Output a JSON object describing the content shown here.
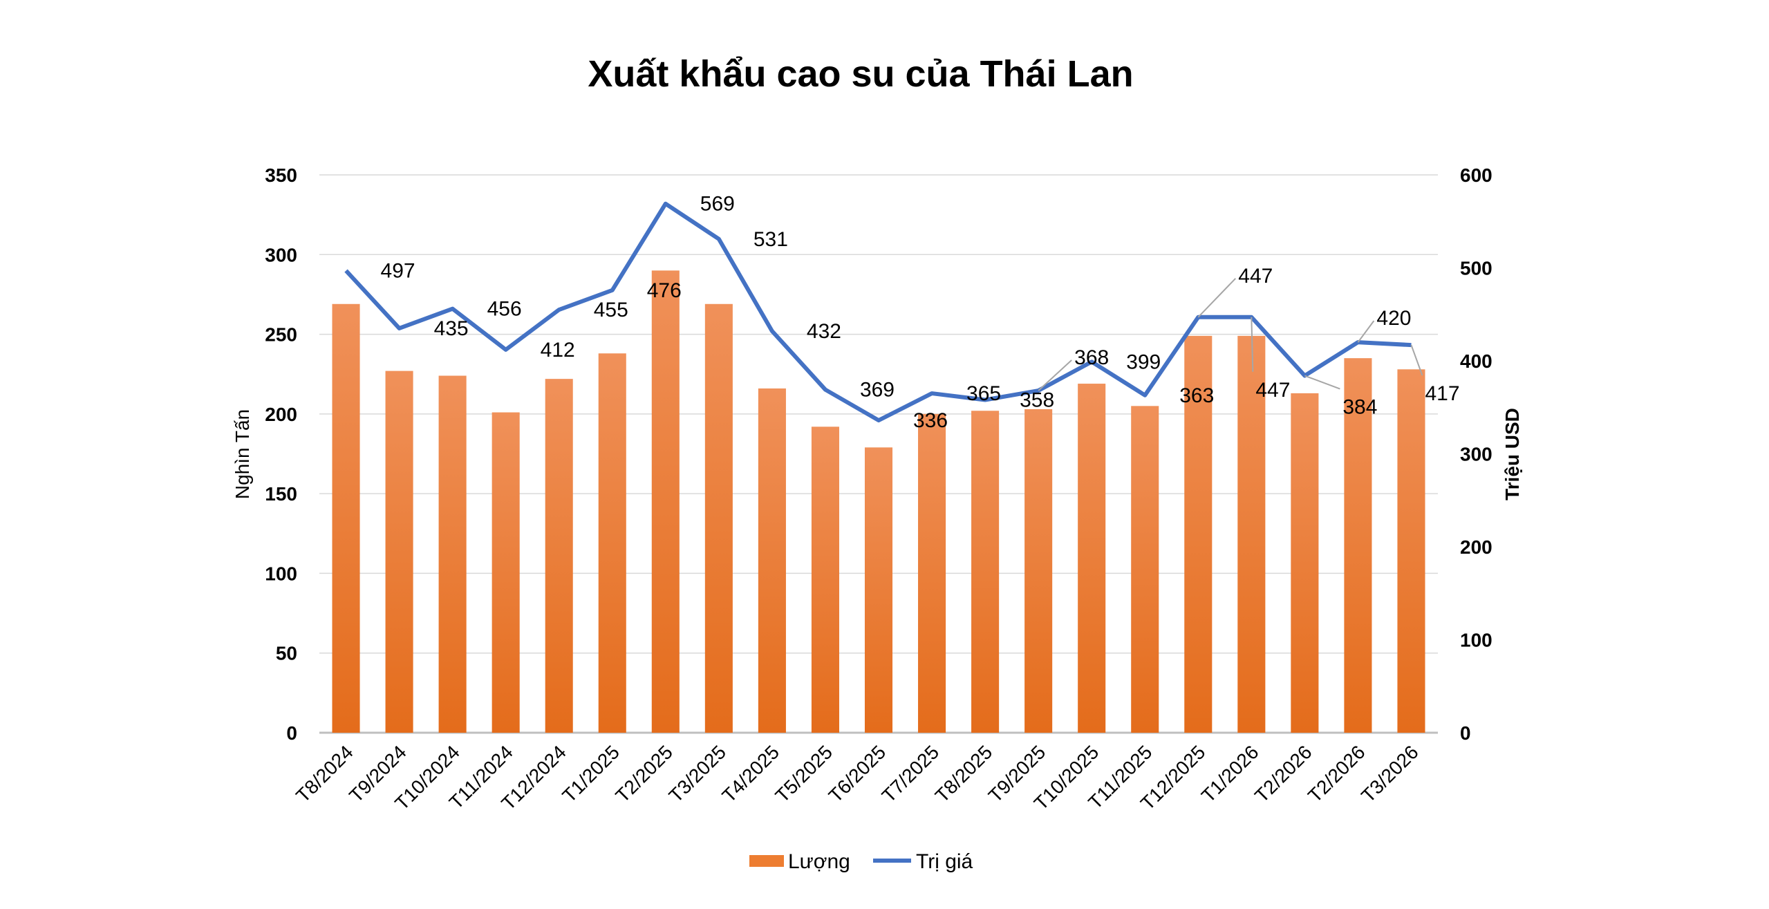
{
  "chart_data": {
    "type": "bar+line",
    "title": "Xuất khẩu cao su của Thái Lan",
    "categories": [
      "T8/2024",
      "T9/2024",
      "T10/2024",
      "T11/2024",
      "T12/2024",
      "T1/2025",
      "T2/2025",
      "T3/2025",
      "T4/2025",
      "T5/2025",
      "T6/2025",
      "T7/2025",
      "T8/2025",
      "T9/2025",
      "T10/2025",
      "T11/2025",
      "T12/2025",
      "T1/2026",
      "T2/2026",
      "T2/2026",
      "T3/2026"
    ],
    "series": [
      {
        "name": "Lượng",
        "type": "bar",
        "axis": "left",
        "color": "#ED7D31",
        "values": [
          269,
          227,
          224,
          201,
          222,
          238,
          290,
          269,
          216,
          192,
          179,
          200,
          202,
          203,
          219,
          205,
          249,
          249,
          213,
          235,
          228
        ]
      },
      {
        "name": "Trị giá",
        "type": "line",
        "axis": "right",
        "color": "#4472C4",
        "values": [
          497,
          435,
          456,
          412,
          455,
          476,
          569,
          531,
          432,
          369,
          336,
          365,
          358,
          368,
          399,
          363,
          447,
          447,
          384,
          420,
          417
        ]
      }
    ],
    "ylabel": "Nghìn Tấn",
    "y2label": "Triệu USD",
    "ylim": [
      0,
      350
    ],
    "y2lim": [
      0,
      600
    ],
    "yticks": [
      "0",
      "50",
      "100",
      "150",
      "200",
      "250",
      "300",
      "350"
    ],
    "y2ticks": [
      "0",
      "100",
      "200",
      "300",
      "400",
      "500",
      "600"
    ],
    "grid": true,
    "legend": "bottom"
  }
}
